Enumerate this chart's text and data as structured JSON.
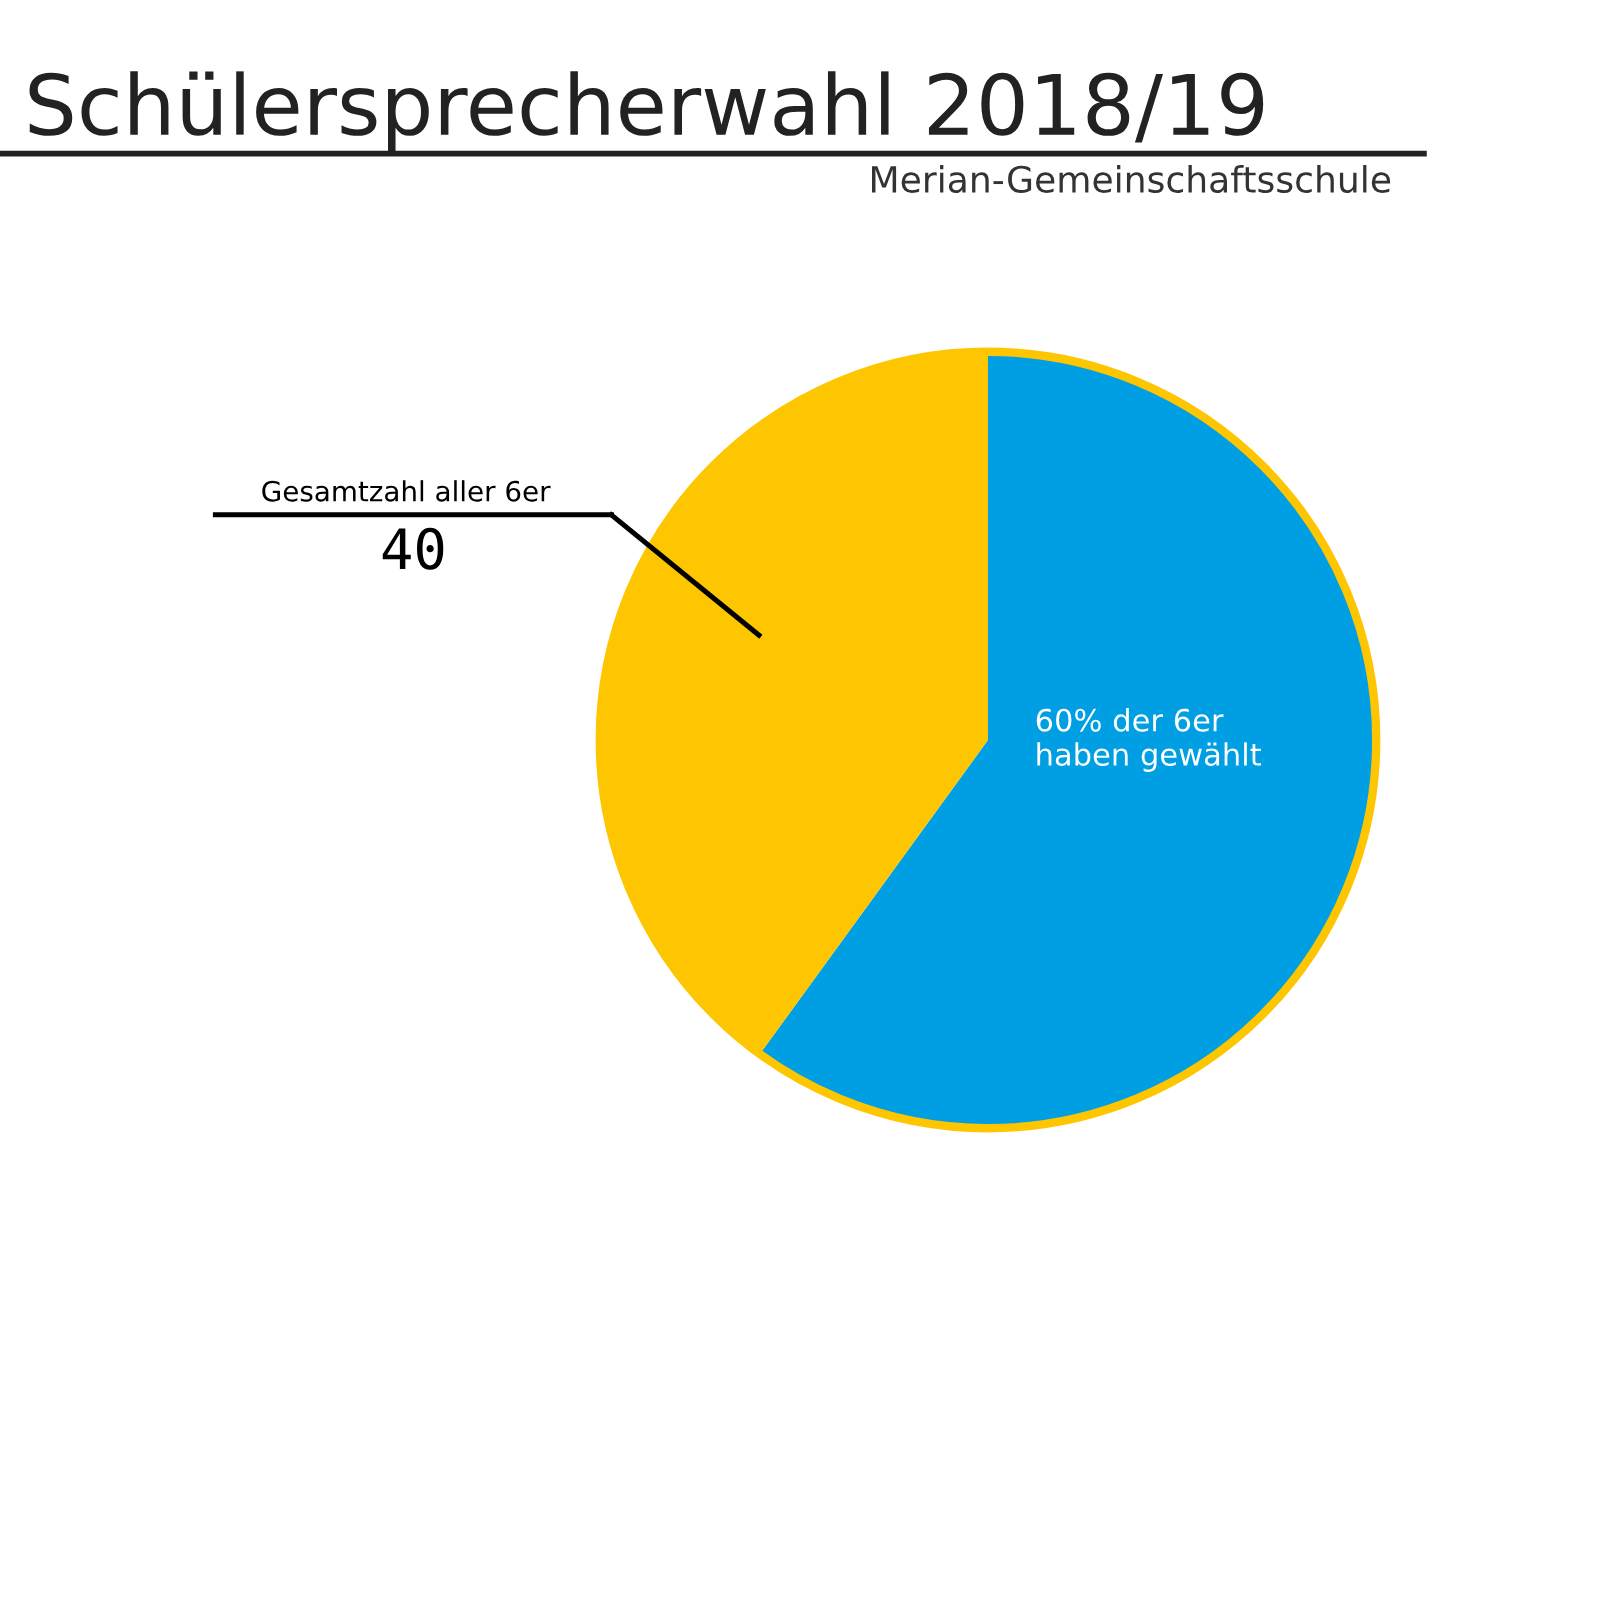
{
  "chart_data": {
    "type": "pie",
    "title": "Schülersprecherwahl 2018/19",
    "subtitle": "Merian-Gemeinschaftsschule",
    "categories": [
      "60% der 6er\nhaben gewählt",
      "Gesamtzahl aller 6er"
    ],
    "values": [
      60,
      40
    ],
    "colors": [
      "#009fe3",
      "#fec600"
    ],
    "value_labels": [
      null,
      "40"
    ],
    "legend": false
  }
}
